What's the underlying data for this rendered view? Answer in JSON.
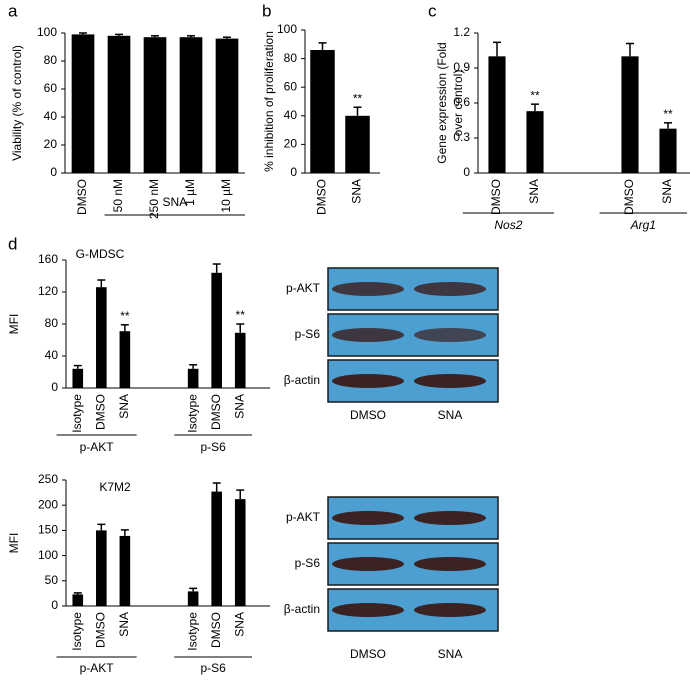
{
  "chart_data": [
    {
      "type": "bar",
      "panel": "a",
      "ylabel": "Viability (% of control)",
      "ylim": [
        0,
        100
      ],
      "yticks": [
        0,
        20,
        40,
        60,
        80,
        100
      ],
      "color": "#000000",
      "groups": [
        {
          "categories": [
            "DMSO"
          ],
          "values": [
            99
          ],
          "errors": [
            1
          ]
        },
        {
          "label": "SNA",
          "categories": [
            "50 nM",
            "250 nM",
            "1 µM",
            "10 µM"
          ],
          "values": [
            98,
            97,
            97,
            96
          ],
          "errors": [
            1,
            1,
            1,
            1
          ]
        }
      ]
    },
    {
      "type": "bar",
      "panel": "b",
      "ylabel": "% inhibition of proliferation",
      "ylim": [
        0,
        100
      ],
      "yticks": [
        0,
        20,
        40,
        60,
        80,
        100
      ],
      "color": "#000000",
      "groups": [
        {
          "categories": [
            "DMSO",
            "SNA"
          ],
          "values": [
            86,
            40
          ],
          "errors": [
            5,
            6
          ],
          "annotations": [
            null,
            "**"
          ]
        }
      ]
    },
    {
      "type": "bar",
      "panel": "c",
      "ylabel": [
        "Gene expression (Fold",
        "over control)"
      ],
      "ylim": [
        0,
        1.2
      ],
      "yticks": [
        0,
        0.3,
        0.6,
        0.9,
        1.2
      ],
      "color": "#000000",
      "groups": [
        {
          "label": "Nos2",
          "categories": [
            "DMSO",
            "SNA"
          ],
          "values": [
            1.0,
            0.53
          ],
          "errors": [
            0.12,
            0.06
          ],
          "annotations": [
            null,
            "**"
          ]
        },
        {
          "label": "Arg1",
          "categories": [
            "DMSO",
            "SNA"
          ],
          "values": [
            1.0,
            0.38
          ],
          "errors": [
            0.11,
            0.05
          ],
          "annotations": [
            null,
            "**"
          ]
        }
      ]
    },
    {
      "type": "bar",
      "panel": "d",
      "title": "G-MDSC",
      "ylabel": "MFI",
      "ylim": [
        0,
        160
      ],
      "yticks": [
        0,
        40,
        80,
        120,
        160
      ],
      "color": "#000000",
      "groups": [
        {
          "label": "p-AKT",
          "categories": [
            "Isotype",
            "DMSO",
            "SNA"
          ],
          "values": [
            24,
            126,
            71
          ],
          "errors": [
            4,
            9,
            8
          ],
          "annotations": [
            null,
            null,
            "**"
          ]
        },
        {
          "label": "p-S6",
          "categories": [
            "Isotype",
            "DMSO",
            "SNA"
          ],
          "values": [
            24,
            144,
            69
          ],
          "errors": [
            5,
            11,
            11
          ],
          "annotations": [
            null,
            null,
            "**"
          ]
        }
      ]
    },
    {
      "type": "bar",
      "title": "K7M2",
      "ylabel": "MFI",
      "ylim": [
        0,
        250
      ],
      "yticks": [
        0,
        50,
        100,
        150,
        200,
        250
      ],
      "color": "#000000",
      "groups": [
        {
          "label": "p-AKT",
          "categories": [
            "Isotype",
            "DMSO",
            "SNA"
          ],
          "values": [
            23,
            150,
            139
          ],
          "errors": [
            3,
            12,
            12
          ]
        },
        {
          "label": "p-S6",
          "categories": [
            "Isotype",
            "DMSO",
            "SNA"
          ],
          "values": [
            29,
            227,
            212
          ],
          "errors": [
            6,
            17,
            18
          ]
        }
      ]
    }
  ],
  "blots": [
    {
      "rows": [
        "p-AKT",
        "p-S6",
        "β-actin"
      ],
      "lanes": [
        "DMSO",
        "SNA"
      ]
    },
    {
      "rows": [
        "p-AKT",
        "p-S6",
        "β-actin"
      ],
      "lanes": [
        "DMSO",
        "SNA"
      ]
    }
  ]
}
